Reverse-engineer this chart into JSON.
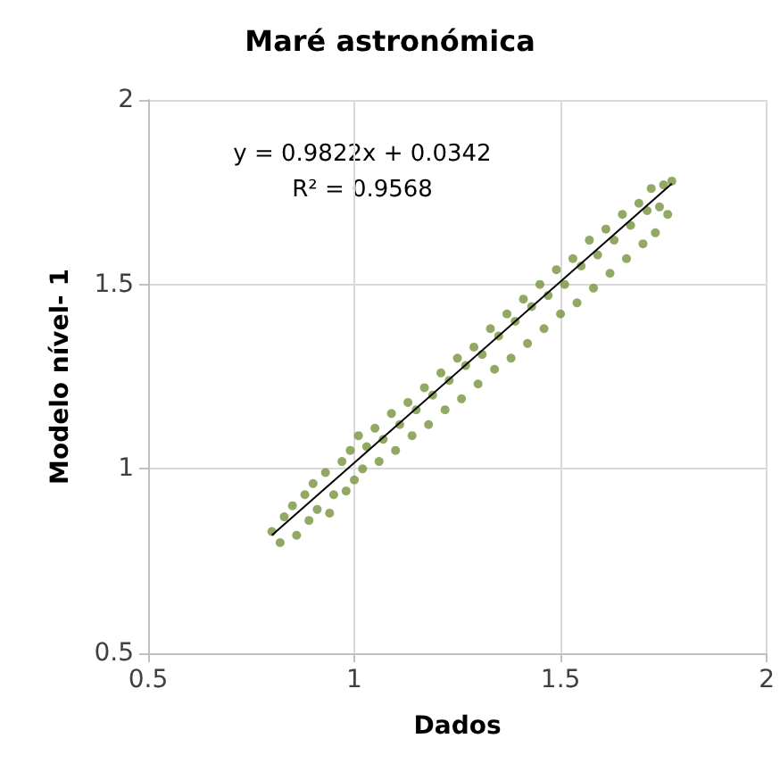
{
  "chart_data": {
    "type": "scatter",
    "title": "Maré astronómica",
    "xlabel": "Dados",
    "ylabel": "Modelo nível- 1",
    "annotations": [
      "y = 0.9822x + 0.0342",
      "R² = 0.9568"
    ],
    "xlim": [
      0.5,
      2
    ],
    "ylim": [
      0.5,
      2
    ],
    "xticks": [
      0.5,
      1,
      1.5,
      2
    ],
    "yticks": [
      0.5,
      1,
      1.5,
      2
    ],
    "grid": true,
    "marker": "circle",
    "series": [
      {
        "color": "#77933c",
        "x": [
          0.8,
          0.82,
          0.83,
          0.85,
          0.86,
          0.88,
          0.89,
          0.9,
          0.91,
          0.93,
          0.94,
          0.95,
          0.97,
          0.98,
          0.99,
          1.0,
          1.01,
          1.02,
          1.03,
          1.05,
          1.06,
          1.07,
          1.09,
          1.1,
          1.11,
          1.13,
          1.14,
          1.15,
          1.17,
          1.18,
          1.19,
          1.21,
          1.22,
          1.23,
          1.25,
          1.26,
          1.27,
          1.29,
          1.3,
          1.31,
          1.33,
          1.34,
          1.35,
          1.37,
          1.38,
          1.39,
          1.41,
          1.42,
          1.43,
          1.45,
          1.46,
          1.47,
          1.49,
          1.5,
          1.51,
          1.53,
          1.54,
          1.55,
          1.57,
          1.58,
          1.59,
          1.61,
          1.62,
          1.63,
          1.65,
          1.66,
          1.67,
          1.69,
          1.7,
          1.71,
          1.72,
          1.73,
          1.74,
          1.75,
          1.76,
          1.77
        ],
        "values": [
          0.83,
          0.8,
          0.87,
          0.9,
          0.82,
          0.93,
          0.86,
          0.96,
          0.89,
          0.99,
          0.88,
          0.93,
          1.02,
          0.94,
          1.05,
          0.97,
          1.09,
          1.0,
          1.06,
          1.11,
          1.02,
          1.08,
          1.15,
          1.05,
          1.12,
          1.18,
          1.09,
          1.16,
          1.22,
          1.12,
          1.2,
          1.26,
          1.16,
          1.24,
          1.3,
          1.19,
          1.28,
          1.33,
          1.23,
          1.31,
          1.38,
          1.27,
          1.36,
          1.42,
          1.3,
          1.4,
          1.46,
          1.34,
          1.44,
          1.5,
          1.38,
          1.47,
          1.54,
          1.42,
          1.5,
          1.57,
          1.45,
          1.55,
          1.62,
          1.49,
          1.58,
          1.65,
          1.53,
          1.62,
          1.69,
          1.57,
          1.66,
          1.72,
          1.61,
          1.7,
          1.76,
          1.64,
          1.71,
          1.77,
          1.69,
          1.78
        ]
      },
      {
        "type": "line",
        "color": "#000000",
        "x": [
          0.8,
          1.77
        ],
        "values": [
          0.82,
          1.773
        ],
        "marker": "none"
      }
    ]
  }
}
